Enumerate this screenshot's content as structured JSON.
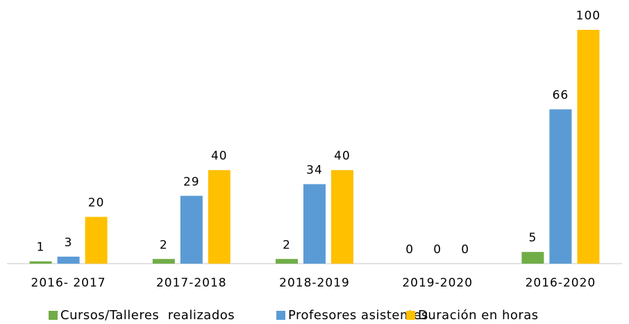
{
  "chart_data": {
    "type": "bar",
    "categories": [
      "2016- 2017",
      "2017-2018",
      "2018-2019",
      "2019-2020",
      "2016-2020"
    ],
    "series": [
      {
        "name": "Cursos/Talleres  realizados",
        "color": "#70ad47",
        "values": [
          1,
          2,
          2,
          0,
          5
        ]
      },
      {
        "name": "Profesores asistentes",
        "color": "#5b9bd5",
        "values": [
          3,
          29,
          34,
          0,
          66
        ]
      },
      {
        "name": "Duración en horas",
        "color": "#ffc000",
        "values": [
          20,
          40,
          40,
          0,
          100
        ]
      }
    ],
    "ylim": [
      0,
      100
    ],
    "legend": "bottom"
  }
}
